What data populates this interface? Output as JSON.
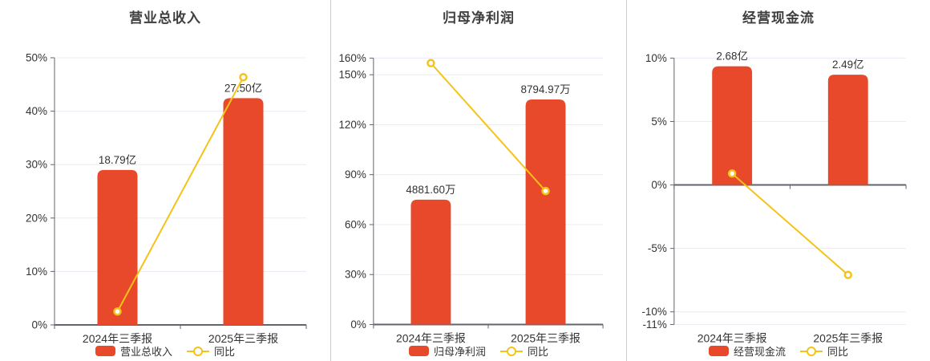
{
  "colors": {
    "bar": "#e8492a",
    "line": "#f5c318",
    "grid": "#e8ecf4",
    "axis": "#63656e",
    "text": "#333333",
    "title": "#3f3f3f",
    "divider": "#cccccc",
    "marker_fill": "#ffffff"
  },
  "chart_data": [
    {
      "type": "bar+line",
      "title": "营业总收入",
      "categories": [
        "2024年三季报",
        "2025年三季报"
      ],
      "y_axis": {
        "unit": "%",
        "min": 0,
        "max": 50,
        "ticks": [
          0,
          10,
          20,
          30,
          40,
          50
        ]
      },
      "series": [
        {
          "name": "营业总收入",
          "type": "bar",
          "labels": [
            "18.79亿",
            "27.50亿"
          ],
          "height_pct": [
            29.0,
            42.44
          ]
        },
        {
          "name": "同比",
          "type": "line",
          "values_pct": [
            2.5,
            46.35
          ]
        }
      ],
      "grid": true,
      "legend_position": "bottom"
    },
    {
      "type": "bar+line",
      "title": "归母净利润",
      "categories": [
        "2024年三季报",
        "2025年三季报"
      ],
      "y_axis": {
        "unit": "%",
        "min": 0,
        "max": 160,
        "ticks": [
          0,
          30,
          60,
          90,
          120,
          150,
          160
        ]
      },
      "series": [
        {
          "name": "归母净利润",
          "type": "bar",
          "labels": [
            "4881.60万",
            "8794.97万"
          ],
          "height_pct": [
            75.0,
            135.13
          ]
        },
        {
          "name": "同比",
          "type": "line",
          "values_pct": [
            157.0,
            80.17
          ]
        }
      ],
      "grid": true,
      "legend_position": "bottom"
    },
    {
      "type": "bar+line",
      "title": "经营现金流",
      "categories": [
        "2024年三季报",
        "2025年三季报"
      ],
      "y_axis": {
        "unit": "%",
        "min": -11,
        "max": 10,
        "ticks": [
          -11,
          -10,
          -5,
          0,
          5,
          10
        ]
      },
      "series": [
        {
          "name": "经营现金流",
          "type": "bar",
          "labels": [
            "2.68亿",
            "2.49亿"
          ],
          "height_pct": [
            9.35,
            8.69
          ]
        },
        {
          "name": "同比",
          "type": "line",
          "values_pct": [
            0.9,
            -7.09
          ]
        }
      ],
      "grid": true,
      "legend_position": "bottom"
    }
  ]
}
